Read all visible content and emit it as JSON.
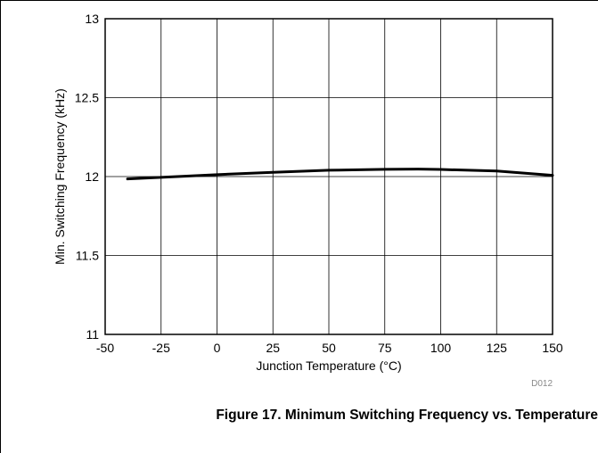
{
  "chart_data": {
    "type": "line",
    "xlabel": "Junction Temperature (°C)",
    "ylabel": "Min. Switching Frequency (kHz)",
    "xlim": [
      -50,
      150
    ],
    "ylim": [
      11,
      13
    ],
    "xticks": [
      -50,
      -25,
      0,
      25,
      50,
      75,
      100,
      125,
      150
    ],
    "yticks": [
      11,
      11.5,
      12,
      12.5,
      13
    ],
    "xtick_labels": [
      "-50",
      "-25",
      "0",
      "25",
      "50",
      "75",
      "100",
      "125",
      "150"
    ],
    "ytick_labels": [
      "11",
      "11.5",
      "12",
      "12.5",
      "13"
    ],
    "grid": true,
    "series": [
      {
        "x": [
          -40,
          -25,
          0,
          25,
          50,
          75,
          90,
          100,
          125,
          150
        ],
        "y": [
          11.985,
          11.995,
          12.012,
          12.027,
          12.04,
          12.046,
          12.047,
          12.045,
          12.035,
          12.008
        ]
      }
    ],
    "line_color": "#000000",
    "code": "D012"
  },
  "caption": "Figure 17. Minimum Switching Frequency vs. Temperature"
}
